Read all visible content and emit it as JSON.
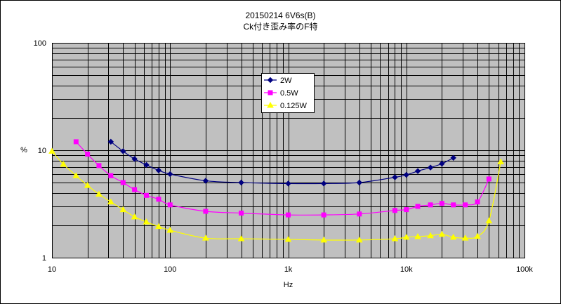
{
  "chart_data": {
    "type": "line",
    "title": "20150214 6V6s(B)",
    "subtitle": "Ck付き歪み率のF特",
    "xlabel": "Hz",
    "ylabel": "%",
    "x_scale": "log",
    "y_scale": "log",
    "xlim": [
      10,
      100000
    ],
    "ylim": [
      1,
      100
    ],
    "x_tick_labels": [
      "10",
      "100",
      "1k",
      "10k",
      "100k"
    ],
    "y_tick_labels": [
      "1",
      "10",
      "100"
    ],
    "grid": true,
    "legend_position": "top-center",
    "plot_background": "#c0c0c0",
    "series": [
      {
        "name": "2W",
        "color": "#000080",
        "marker": "diamond",
        "x": [
          31.5,
          40,
          50,
          63,
          80,
          100,
          200,
          400,
          1000,
          2000,
          4000,
          8000,
          10000,
          12500,
          16000,
          20000,
          25000
        ],
        "y": [
          12,
          9.8,
          8.3,
          7.3,
          6.5,
          6.0,
          5.2,
          5.0,
          4.9,
          4.9,
          5.0,
          5.6,
          5.9,
          6.4,
          6.9,
          7.5,
          8.5
        ]
      },
      {
        "name": "0.5W",
        "color": "#ff00ff",
        "marker": "square",
        "x": [
          16,
          20,
          25,
          31.5,
          40,
          50,
          63,
          80,
          100,
          200,
          400,
          1000,
          2000,
          4000,
          8000,
          10000,
          12500,
          16000,
          20000,
          25000,
          31500,
          40000,
          50000
        ],
        "y": [
          12,
          9.2,
          7.2,
          5.8,
          5.0,
          4.3,
          3.8,
          3.5,
          3.1,
          2.7,
          2.6,
          2.5,
          2.5,
          2.55,
          2.75,
          2.8,
          3.0,
          3.1,
          3.2,
          3.1,
          3.1,
          3.3,
          5.4
        ]
      },
      {
        "name": "0.125W",
        "color": "#ffff00",
        "marker": "triangle",
        "x": [
          10,
          12.5,
          16,
          20,
          25,
          31.5,
          40,
          50,
          63,
          80,
          100,
          200,
          400,
          1000,
          2000,
          4000,
          8000,
          10000,
          12500,
          16000,
          20000,
          25000,
          31500,
          40000,
          50000,
          63000
        ],
        "y": [
          9.8,
          7.4,
          5.8,
          4.7,
          3.9,
          3.3,
          2.8,
          2.4,
          2.15,
          1.95,
          1.8,
          1.52,
          1.5,
          1.48,
          1.46,
          1.46,
          1.5,
          1.55,
          1.57,
          1.6,
          1.65,
          1.55,
          1.52,
          1.58,
          2.2,
          7.8
        ]
      }
    ]
  }
}
